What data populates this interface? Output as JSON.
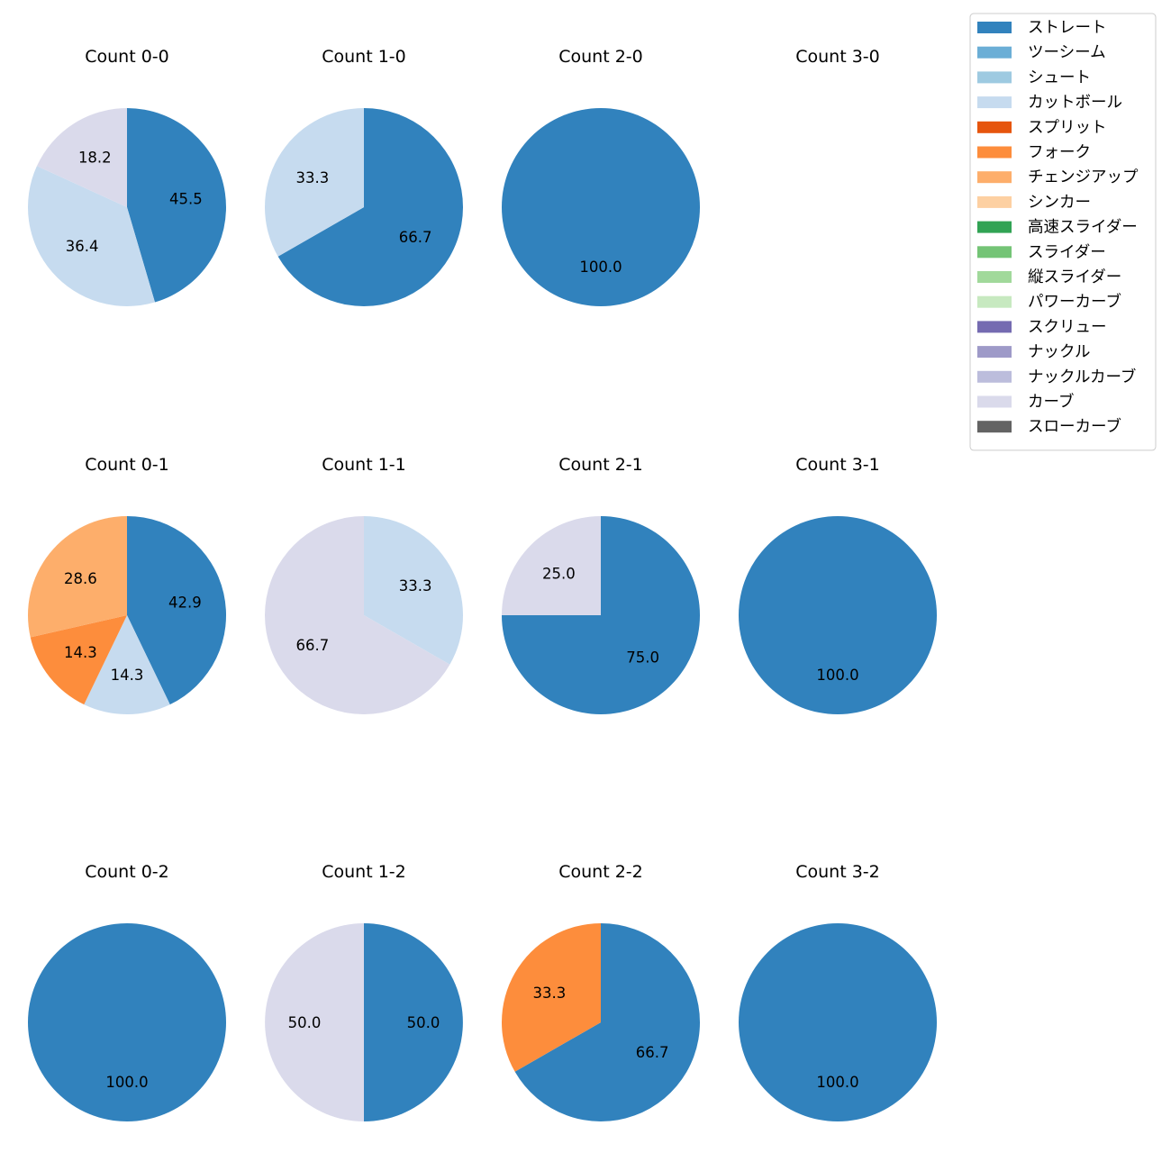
{
  "chart_data": {
    "type": "pie",
    "legend": {
      "placement": "top-right",
      "entries": [
        {
          "label": "ストレート",
          "color": "#3182bd"
        },
        {
          "label": "ツーシーム",
          "color": "#6baed6"
        },
        {
          "label": "シュート",
          "color": "#9ecae1"
        },
        {
          "label": "カットボール",
          "color": "#c6dbef"
        },
        {
          "label": "スプリット",
          "color": "#e6550d"
        },
        {
          "label": "フォーク",
          "color": "#fd8d3c"
        },
        {
          "label": "チェンジアップ",
          "color": "#fdae6b"
        },
        {
          "label": "シンカー",
          "color": "#fdd0a2"
        },
        {
          "label": "高速スライダー",
          "color": "#31a354"
        },
        {
          "label": "スライダー",
          "color": "#74c476"
        },
        {
          "label": "縦スライダー",
          "color": "#a1d99b"
        },
        {
          "label": "パワーカーブ",
          "color": "#c7e9c0"
        },
        {
          "label": "スクリュー",
          "color": "#756bb1"
        },
        {
          "label": "ナックル",
          "color": "#9e9ac8"
        },
        {
          "label": "ナックルカーブ",
          "color": "#bcbddc"
        },
        {
          "label": "カーブ",
          "color": "#dadaeb"
        },
        {
          "label": "スローカーブ",
          "color": "#636363"
        }
      ]
    },
    "pies": [
      {
        "title": "Count 0-0",
        "slices": [
          {
            "pitch": "ストレート",
            "value": 45.5
          },
          {
            "pitch": "カットボール",
            "value": 36.4
          },
          {
            "pitch": "カーブ",
            "value": 18.2
          }
        ]
      },
      {
        "title": "Count 1-0",
        "slices": [
          {
            "pitch": "ストレート",
            "value": 66.7
          },
          {
            "pitch": "カットボール",
            "value": 33.3
          }
        ]
      },
      {
        "title": "Count 2-0",
        "slices": [
          {
            "pitch": "ストレート",
            "value": 100.0
          }
        ]
      },
      {
        "title": "Count 3-0",
        "slices": []
      },
      {
        "title": "Count 0-1",
        "slices": [
          {
            "pitch": "ストレート",
            "value": 42.9
          },
          {
            "pitch": "カットボール",
            "value": 14.3
          },
          {
            "pitch": "フォーク",
            "value": 14.3
          },
          {
            "pitch": "チェンジアップ",
            "value": 28.6
          }
        ]
      },
      {
        "title": "Count 1-1",
        "slices": [
          {
            "pitch": "カットボール",
            "value": 33.3
          },
          {
            "pitch": "カーブ",
            "value": 66.7
          }
        ]
      },
      {
        "title": "Count 2-1",
        "slices": [
          {
            "pitch": "ストレート",
            "value": 75.0
          },
          {
            "pitch": "カーブ",
            "value": 25.0
          }
        ]
      },
      {
        "title": "Count 3-1",
        "slices": [
          {
            "pitch": "ストレート",
            "value": 100.0
          }
        ]
      },
      {
        "title": "Count 0-2",
        "slices": [
          {
            "pitch": "ストレート",
            "value": 100.0
          }
        ]
      },
      {
        "title": "Count 1-2",
        "slices": [
          {
            "pitch": "ストレート",
            "value": 50.0
          },
          {
            "pitch": "カーブ",
            "value": 50.0
          }
        ]
      },
      {
        "title": "Count 2-2",
        "slices": [
          {
            "pitch": "ストレート",
            "value": 66.7
          },
          {
            "pitch": "フォーク",
            "value": 33.3
          }
        ]
      },
      {
        "title": "Count 3-2",
        "slices": [
          {
            "pitch": "ストレート",
            "value": 100.0
          }
        ]
      }
    ]
  }
}
